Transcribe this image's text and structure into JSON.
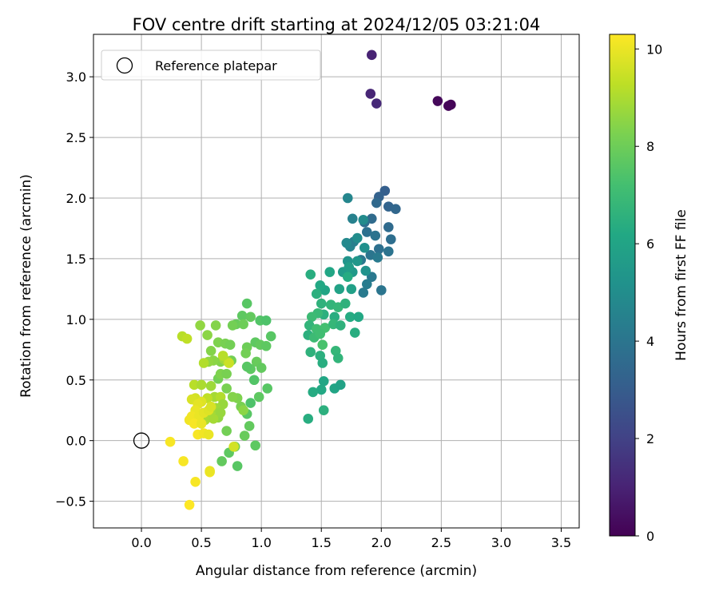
{
  "chart_data": {
    "type": "scatter",
    "title": "FOV centre drift starting at 2024/12/05 03:21:04",
    "xlabel": "Angular distance from reference (arcmin)",
    "ylabel": "Rotation from reference (arcmin)",
    "xlim": [
      -0.4,
      3.65
    ],
    "ylim": [
      -0.72,
      3.35
    ],
    "xticks": [
      0.0,
      0.5,
      1.0,
      1.5,
      2.0,
      2.5,
      3.0,
      3.5
    ],
    "xtick_labels": [
      "0.0",
      "0.5",
      "1.0",
      "1.5",
      "2.0",
      "2.5",
      "3.0",
      "3.5"
    ],
    "yticks": [
      -0.5,
      0.0,
      0.5,
      1.0,
      1.5,
      2.0,
      2.5,
      3.0
    ],
    "ytick_labels": [
      "−0.5",
      "0.0",
      "0.5",
      "1.0",
      "1.5",
      "2.0",
      "2.5",
      "3.0"
    ],
    "grid": true,
    "legend": {
      "position": "upper-left",
      "entries": [
        "Reference platepar"
      ]
    },
    "reference_point": {
      "x": 0.0,
      "y": 0.0,
      "label": "Reference platepar"
    },
    "colorbar": {
      "label": "Hours from first FF file",
      "range": [
        0,
        10.3
      ],
      "ticks": [
        0,
        2,
        4,
        6,
        8,
        10
      ],
      "tick_labels": [
        "0",
        "2",
        "4",
        "6",
        "8",
        "10"
      ],
      "colormap": "viridis"
    },
    "points": [
      {
        "x": 2.58,
        "y": 2.77,
        "h": 0.1
      },
      {
        "x": 2.56,
        "y": 2.76,
        "h": 0.15
      },
      {
        "x": 2.47,
        "y": 2.8,
        "h": 0.2
      },
      {
        "x": 1.92,
        "y": 3.18,
        "h": 1.0
      },
      {
        "x": 1.91,
        "y": 2.86,
        "h": 1.1
      },
      {
        "x": 1.96,
        "y": 2.78,
        "h": 1.2
      },
      {
        "x": 2.03,
        "y": 2.06,
        "h": 3.1
      },
      {
        "x": 1.98,
        "y": 2.01,
        "h": 3.2
      },
      {
        "x": 2.06,
        "y": 1.93,
        "h": 3.3
      },
      {
        "x": 2.12,
        "y": 1.91,
        "h": 3.4
      },
      {
        "x": 1.96,
        "y": 1.96,
        "h": 3.5
      },
      {
        "x": 1.92,
        "y": 1.83,
        "h": 3.6
      },
      {
        "x": 1.86,
        "y": 1.8,
        "h": 3.7
      },
      {
        "x": 1.88,
        "y": 1.72,
        "h": 3.8
      },
      {
        "x": 1.95,
        "y": 1.69,
        "h": 3.9
      },
      {
        "x": 2.06,
        "y": 1.76,
        "h": 3.6
      },
      {
        "x": 2.08,
        "y": 1.66,
        "h": 3.7
      },
      {
        "x": 1.98,
        "y": 1.58,
        "h": 3.8
      },
      {
        "x": 2.06,
        "y": 1.56,
        "h": 3.9
      },
      {
        "x": 1.91,
        "y": 1.53,
        "h": 4.0
      },
      {
        "x": 1.83,
        "y": 1.49,
        "h": 4.1
      },
      {
        "x": 1.97,
        "y": 1.51,
        "h": 4.2
      },
      {
        "x": 1.92,
        "y": 1.35,
        "h": 4.1
      },
      {
        "x": 1.88,
        "y": 1.29,
        "h": 4.3
      },
      {
        "x": 1.85,
        "y": 1.22,
        "h": 4.2
      },
      {
        "x": 2.0,
        "y": 1.24,
        "h": 4.0
      },
      {
        "x": 1.74,
        "y": 1.6,
        "h": 4.6
      },
      {
        "x": 1.77,
        "y": 1.64,
        "h": 4.4
      },
      {
        "x": 1.71,
        "y": 1.63,
        "h": 4.8
      },
      {
        "x": 1.72,
        "y": 2.0,
        "h": 4.7
      },
      {
        "x": 1.76,
        "y": 1.83,
        "h": 4.5
      },
      {
        "x": 1.85,
        "y": 1.82,
        "h": 4.9
      },
      {
        "x": 1.8,
        "y": 1.67,
        "h": 5.0
      },
      {
        "x": 1.86,
        "y": 1.59,
        "h": 5.1
      },
      {
        "x": 1.72,
        "y": 1.48,
        "h": 5.3
      },
      {
        "x": 1.8,
        "y": 1.48,
        "h": 5.4
      },
      {
        "x": 1.76,
        "y": 1.39,
        "h": 5.5
      },
      {
        "x": 1.87,
        "y": 1.4,
        "h": 5.2
      },
      {
        "x": 1.68,
        "y": 1.39,
        "h": 5.6
      },
      {
        "x": 1.73,
        "y": 1.43,
        "h": 5.7
      },
      {
        "x": 1.72,
        "y": 1.35,
        "h": 6.3
      },
      {
        "x": 1.75,
        "y": 1.25,
        "h": 5.8
      },
      {
        "x": 1.65,
        "y": 1.25,
        "h": 5.9
      },
      {
        "x": 1.53,
        "y": 1.24,
        "h": 6.0
      },
      {
        "x": 1.57,
        "y": 1.39,
        "h": 6.1
      },
      {
        "x": 1.49,
        "y": 1.28,
        "h": 6.2
      },
      {
        "x": 1.41,
        "y": 1.37,
        "h": 6.4
      },
      {
        "x": 1.46,
        "y": 1.21,
        "h": 6.5
      },
      {
        "x": 1.5,
        "y": 1.13,
        "h": 6.6
      },
      {
        "x": 1.58,
        "y": 1.12,
        "h": 6.7
      },
      {
        "x": 1.64,
        "y": 1.1,
        "h": 6.8
      },
      {
        "x": 1.7,
        "y": 1.13,
        "h": 6.6
      },
      {
        "x": 1.52,
        "y": 1.04,
        "h": 6.5
      },
      {
        "x": 1.61,
        "y": 1.02,
        "h": 6.4
      },
      {
        "x": 1.74,
        "y": 1.02,
        "h": 6.3
      },
      {
        "x": 1.81,
        "y": 1.02,
        "h": 6.2
      },
      {
        "x": 1.47,
        "y": 1.05,
        "h": 6.9
      },
      {
        "x": 1.42,
        "y": 1.02,
        "h": 7.0
      },
      {
        "x": 1.4,
        "y": 0.95,
        "h": 6.7
      },
      {
        "x": 1.46,
        "y": 0.92,
        "h": 7.1
      },
      {
        "x": 1.53,
        "y": 0.93,
        "h": 7.2
      },
      {
        "x": 1.6,
        "y": 0.96,
        "h": 6.8
      },
      {
        "x": 1.66,
        "y": 0.95,
        "h": 6.6
      },
      {
        "x": 1.39,
        "y": 0.87,
        "h": 6.5
      },
      {
        "x": 1.44,
        "y": 0.85,
        "h": 7.0
      },
      {
        "x": 1.51,
        "y": 0.79,
        "h": 7.3
      },
      {
        "x": 1.49,
        "y": 0.88,
        "h": 7.1
      },
      {
        "x": 1.78,
        "y": 0.89,
        "h": 6.4
      },
      {
        "x": 1.41,
        "y": 0.73,
        "h": 6.6
      },
      {
        "x": 1.49,
        "y": 0.7,
        "h": 6.5
      },
      {
        "x": 1.51,
        "y": 0.64,
        "h": 6.4
      },
      {
        "x": 1.62,
        "y": 0.74,
        "h": 6.8
      },
      {
        "x": 1.64,
        "y": 0.68,
        "h": 6.7
      },
      {
        "x": 1.52,
        "y": 0.49,
        "h": 6.1
      },
      {
        "x": 1.5,
        "y": 0.42,
        "h": 6.2
      },
      {
        "x": 1.43,
        "y": 0.4,
        "h": 6.3
      },
      {
        "x": 1.61,
        "y": 0.43,
        "h": 6.0
      },
      {
        "x": 1.66,
        "y": 0.46,
        "h": 5.9
      },
      {
        "x": 1.52,
        "y": 0.25,
        "h": 6.5
      },
      {
        "x": 1.39,
        "y": 0.18,
        "h": 6.4
      },
      {
        "x": 0.88,
        "y": 1.13,
        "h": 7.6
      },
      {
        "x": 0.84,
        "y": 1.03,
        "h": 7.7
      },
      {
        "x": 0.91,
        "y": 1.02,
        "h": 7.8
      },
      {
        "x": 0.99,
        "y": 0.99,
        "h": 7.5
      },
      {
        "x": 1.04,
        "y": 0.99,
        "h": 7.4
      },
      {
        "x": 0.79,
        "y": 0.96,
        "h": 7.9
      },
      {
        "x": 0.85,
        "y": 0.96,
        "h": 8.0
      },
      {
        "x": 0.76,
        "y": 0.95,
        "h": 8.1
      },
      {
        "x": 1.08,
        "y": 0.86,
        "h": 7.6
      },
      {
        "x": 0.95,
        "y": 0.81,
        "h": 7.7
      },
      {
        "x": 0.99,
        "y": 0.79,
        "h": 7.8
      },
      {
        "x": 1.04,
        "y": 0.78,
        "h": 7.7
      },
      {
        "x": 0.88,
        "y": 0.77,
        "h": 8.0
      },
      {
        "x": 0.87,
        "y": 0.72,
        "h": 8.1
      },
      {
        "x": 0.96,
        "y": 0.65,
        "h": 7.9
      },
      {
        "x": 1.0,
        "y": 0.6,
        "h": 7.8
      },
      {
        "x": 0.91,
        "y": 0.59,
        "h": 7.7
      },
      {
        "x": 0.88,
        "y": 0.61,
        "h": 7.6
      },
      {
        "x": 0.94,
        "y": 0.5,
        "h": 7.5
      },
      {
        "x": 1.05,
        "y": 0.43,
        "h": 7.6
      },
      {
        "x": 0.98,
        "y": 0.36,
        "h": 7.7
      },
      {
        "x": 0.91,
        "y": 0.31,
        "h": 7.4
      },
      {
        "x": 0.88,
        "y": 0.22,
        "h": 7.6
      },
      {
        "x": 0.9,
        "y": 0.12,
        "h": 7.8
      },
      {
        "x": 0.86,
        "y": 0.04,
        "h": 7.9
      },
      {
        "x": 0.95,
        "y": -0.04,
        "h": 7.7
      },
      {
        "x": 0.8,
        "y": -0.21,
        "h": 7.6
      },
      {
        "x": 0.73,
        "y": -0.1,
        "h": 7.7
      },
      {
        "x": 0.67,
        "y": -0.17,
        "h": 7.8
      },
      {
        "x": 0.78,
        "y": -0.05,
        "h": 8.0
      },
      {
        "x": 0.71,
        "y": 0.08,
        "h": 8.1
      },
      {
        "x": 0.83,
        "y": 0.28,
        "h": 8.2
      },
      {
        "x": 0.8,
        "y": 0.35,
        "h": 8.3
      },
      {
        "x": 0.76,
        "y": 0.36,
        "h": 8.4
      },
      {
        "x": 0.85,
        "y": 0.25,
        "h": 8.5
      },
      {
        "x": 0.71,
        "y": 0.43,
        "h": 8.2
      },
      {
        "x": 0.64,
        "y": 0.51,
        "h": 8.1
      },
      {
        "x": 0.66,
        "y": 0.55,
        "h": 8.3
      },
      {
        "x": 0.71,
        "y": 0.55,
        "h": 8.2
      },
      {
        "x": 0.75,
        "y": 0.66,
        "h": 8.1
      },
      {
        "x": 0.66,
        "y": 0.65,
        "h": 8.4
      },
      {
        "x": 0.6,
        "y": 0.66,
        "h": 8.5
      },
      {
        "x": 0.56,
        "y": 0.65,
        "h": 8.6
      },
      {
        "x": 0.58,
        "y": 0.74,
        "h": 8.4
      },
      {
        "x": 0.64,
        "y": 0.81,
        "h": 8.3
      },
      {
        "x": 0.7,
        "y": 0.8,
        "h": 8.2
      },
      {
        "x": 0.74,
        "y": 0.79,
        "h": 8.1
      },
      {
        "x": 0.55,
        "y": 0.87,
        "h": 8.5
      },
      {
        "x": 0.62,
        "y": 0.95,
        "h": 8.4
      },
      {
        "x": 0.49,
        "y": 0.95,
        "h": 8.6
      },
      {
        "x": 0.69,
        "y": 0.67,
        "h": 8.8
      },
      {
        "x": 0.72,
        "y": 0.65,
        "h": 9.0
      },
      {
        "x": 0.52,
        "y": 0.64,
        "h": 9.1
      },
      {
        "x": 0.34,
        "y": 0.86,
        "h": 9.2
      },
      {
        "x": 0.38,
        "y": 0.84,
        "h": 9.3
      },
      {
        "x": 0.44,
        "y": 0.46,
        "h": 9.2
      },
      {
        "x": 0.5,
        "y": 0.46,
        "h": 9.0
      },
      {
        "x": 0.58,
        "y": 0.45,
        "h": 8.8
      },
      {
        "x": 0.61,
        "y": 0.36,
        "h": 8.9
      },
      {
        "x": 0.66,
        "y": 0.36,
        "h": 9.1
      },
      {
        "x": 0.55,
        "y": 0.35,
        "h": 9.3
      },
      {
        "x": 0.68,
        "y": 0.3,
        "h": 8.7
      },
      {
        "x": 0.62,
        "y": 0.27,
        "h": 8.8
      },
      {
        "x": 0.58,
        "y": 0.21,
        "h": 8.9
      },
      {
        "x": 0.64,
        "y": 0.19,
        "h": 8.6
      },
      {
        "x": 0.66,
        "y": 0.23,
        "h": 8.7
      },
      {
        "x": 0.53,
        "y": 0.17,
        "h": 9.0
      },
      {
        "x": 0.6,
        "y": 0.18,
        "h": 8.9
      },
      {
        "x": 0.45,
        "y": 0.35,
        "h": 9.6
      },
      {
        "x": 0.42,
        "y": 0.34,
        "h": 9.7
      },
      {
        "x": 0.5,
        "y": 0.32,
        "h": 9.8
      },
      {
        "x": 0.47,
        "y": 0.3,
        "h": 9.9
      },
      {
        "x": 0.45,
        "y": 0.25,
        "h": 10.0
      },
      {
        "x": 0.42,
        "y": 0.2,
        "h": 10.1
      },
      {
        "x": 0.48,
        "y": 0.2,
        "h": 10.0
      },
      {
        "x": 0.52,
        "y": 0.23,
        "h": 9.9
      },
      {
        "x": 0.4,
        "y": 0.17,
        "h": 10.1
      },
      {
        "x": 0.44,
        "y": 0.14,
        "h": 10.2
      },
      {
        "x": 0.5,
        "y": 0.14,
        "h": 10.0
      },
      {
        "x": 0.56,
        "y": 0.25,
        "h": 9.8
      },
      {
        "x": 0.58,
        "y": 0.28,
        "h": 9.7
      },
      {
        "x": 0.47,
        "y": 0.05,
        "h": 10.2
      },
      {
        "x": 0.52,
        "y": 0.06,
        "h": 10.1
      },
      {
        "x": 0.56,
        "y": 0.05,
        "h": 10.0
      },
      {
        "x": 0.24,
        "y": -0.01,
        "h": 10.2
      },
      {
        "x": 0.35,
        "y": -0.17,
        "h": 10.2
      },
      {
        "x": 0.57,
        "y": -0.26,
        "h": 10.1
      },
      {
        "x": 0.57,
        "y": -0.25,
        "h": 10.0
      },
      {
        "x": 0.45,
        "y": -0.34,
        "h": 10.2
      },
      {
        "x": 0.4,
        "y": -0.53,
        "h": 10.3
      },
      {
        "x": 0.77,
        "y": -0.05,
        "h": 9.6
      },
      {
        "x": 0.73,
        "y": 0.64,
        "h": 9.5
      },
      {
        "x": 0.68,
        "y": 0.7,
        "h": 9.2
      }
    ]
  }
}
